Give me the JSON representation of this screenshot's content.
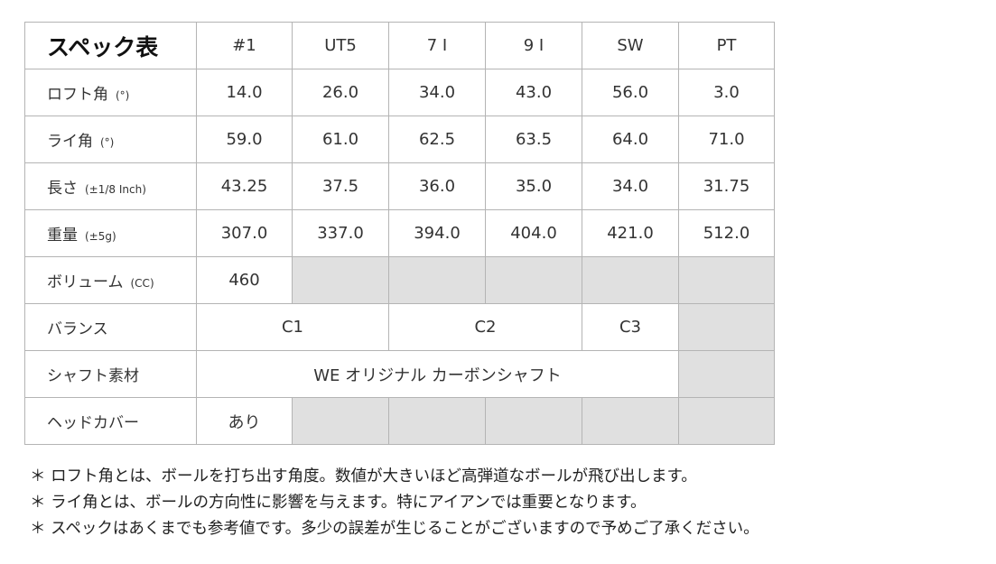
{
  "title": "スペック表",
  "columns": [
    "#1",
    "UT5",
    "7 I",
    "9 I",
    "SW",
    "PT"
  ],
  "rows": [
    {
      "label": "ロフト角",
      "unit": "(°)",
      "cells": [
        {
          "v": "14.0"
        },
        {
          "v": "26.0"
        },
        {
          "v": "34.0"
        },
        {
          "v": "43.0"
        },
        {
          "v": "56.0"
        },
        {
          "v": "3.0"
        }
      ]
    },
    {
      "label": "ライ角",
      "unit": "(°)",
      "cells": [
        {
          "v": "59.0"
        },
        {
          "v": "61.0"
        },
        {
          "v": "62.5"
        },
        {
          "v": "63.5"
        },
        {
          "v": "64.0"
        },
        {
          "v": "71.0"
        }
      ]
    },
    {
      "label": "長さ",
      "unit": "(±1/8 Inch)",
      "cells": [
        {
          "v": "43.25"
        },
        {
          "v": "37.5"
        },
        {
          "v": "36.0"
        },
        {
          "v": "35.0"
        },
        {
          "v": "34.0"
        },
        {
          "v": "31.75"
        }
      ]
    },
    {
      "label": "重量",
      "unit": "(±5g)",
      "cells": [
        {
          "v": "307.0"
        },
        {
          "v": "337.0"
        },
        {
          "v": "394.0"
        },
        {
          "v": "404.0"
        },
        {
          "v": "421.0"
        },
        {
          "v": "512.0"
        }
      ]
    },
    {
      "label": "ボリューム",
      "unit": "(CC)",
      "cells": [
        {
          "v": "460"
        },
        {
          "v": "",
          "gray": true
        },
        {
          "v": "",
          "gray": true
        },
        {
          "v": "",
          "gray": true
        },
        {
          "v": "",
          "gray": true
        },
        {
          "v": "",
          "gray": true
        }
      ]
    },
    {
      "label": "バランス",
      "unit": "",
      "cells": [
        {
          "v": "C1",
          "span": 2
        },
        {
          "v": "C2",
          "span": 2
        },
        {
          "v": "C3"
        },
        {
          "v": "",
          "gray": true
        }
      ]
    },
    {
      "label": "シャフト素材",
      "unit": "",
      "cells": [
        {
          "v": "WE オリジナル カーボンシャフト",
          "span": 5
        },
        {
          "v": "",
          "gray": true
        }
      ]
    },
    {
      "label": "ヘッドカバー",
      "unit": "",
      "cells": [
        {
          "v": "あり"
        },
        {
          "v": "",
          "gray": true
        },
        {
          "v": "",
          "gray": true
        },
        {
          "v": "",
          "gray": true
        },
        {
          "v": "",
          "gray": true
        },
        {
          "v": "",
          "gray": true
        }
      ]
    }
  ],
  "gray_color": "#e0e0e0",
  "notes": [
    "＊ ロフト角とは、ボールを打ち出す角度。数値が大きいほど高弾道なボールが飛び出します。",
    "＊ ライ角とは、ボールの方向性に影響を与えます。特にアイアンでは重要となります。",
    "＊ スペックはあくまでも参考値です。多少の誤差が生じることがございますので予めご了承ください。"
  ]
}
